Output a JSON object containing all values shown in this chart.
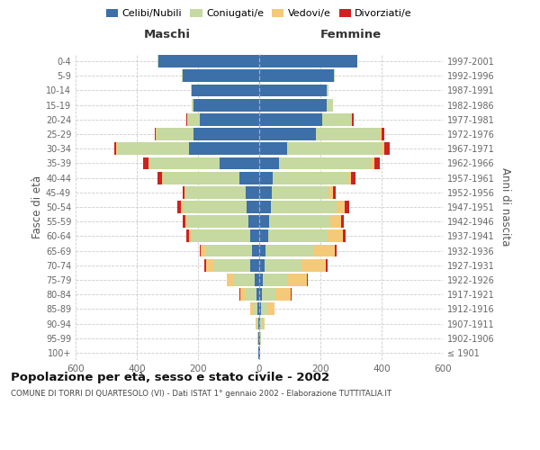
{
  "age_groups": [
    "100+",
    "95-99",
    "90-94",
    "85-89",
    "80-84",
    "75-79",
    "70-74",
    "65-69",
    "60-64",
    "55-59",
    "50-54",
    "45-49",
    "40-44",
    "35-39",
    "30-34",
    "25-29",
    "20-24",
    "15-19",
    "10-14",
    "5-9",
    "0-4"
  ],
  "birth_years": [
    "≤ 1901",
    "1902-1906",
    "1907-1911",
    "1912-1916",
    "1917-1921",
    "1922-1926",
    "1927-1931",
    "1932-1936",
    "1937-1941",
    "1942-1946",
    "1947-1951",
    "1952-1956",
    "1957-1961",
    "1962-1966",
    "1967-1971",
    "1972-1976",
    "1977-1981",
    "1982-1986",
    "1987-1991",
    "1992-1996",
    "1997-2001"
  ],
  "male": {
    "celibi": [
      2,
      2,
      3,
      5,
      8,
      15,
      30,
      25,
      30,
      35,
      40,
      45,
      65,
      130,
      230,
      215,
      195,
      215,
      220,
      250,
      330
    ],
    "coniugati": [
      1,
      2,
      5,
      15,
      40,
      70,
      120,
      150,
      190,
      200,
      210,
      195,
      250,
      230,
      235,
      120,
      40,
      5,
      5,
      2,
      2
    ],
    "vedovi": [
      0,
      1,
      3,
      8,
      15,
      20,
      25,
      15,
      10,
      5,
      5,
      3,
      3,
      3,
      2,
      2,
      1,
      1,
      0,
      0,
      0
    ],
    "divorziati": [
      0,
      0,
      0,
      1,
      2,
      2,
      3,
      5,
      8,
      10,
      12,
      8,
      15,
      15,
      8,
      5,
      3,
      1,
      0,
      0,
      0
    ]
  },
  "female": {
    "nubili": [
      2,
      2,
      3,
      5,
      8,
      12,
      18,
      22,
      28,
      32,
      38,
      40,
      45,
      65,
      90,
      185,
      205,
      220,
      220,
      245,
      320
    ],
    "coniugate": [
      1,
      3,
      8,
      20,
      45,
      80,
      120,
      155,
      195,
      200,
      215,
      185,
      245,
      300,
      310,
      210,
      95,
      20,
      5,
      3,
      2
    ],
    "vedove": [
      0,
      2,
      8,
      25,
      50,
      65,
      80,
      70,
      50,
      35,
      25,
      15,
      10,
      10,
      8,
      5,
      3,
      1,
      0,
      0,
      0
    ],
    "divorziate": [
      0,
      0,
      0,
      1,
      2,
      3,
      5,
      5,
      10,
      10,
      15,
      10,
      15,
      20,
      18,
      10,
      5,
      1,
      0,
      0,
      0
    ]
  },
  "colors": {
    "celibi": "#3d6fa8",
    "coniugati": "#c5d9a0",
    "vedovi": "#f5c97a",
    "divorziati": "#cc2222"
  },
  "xlim": 600,
  "title": "Popolazione per età, sesso e stato civile - 2002",
  "subtitle": "COMUNE DI TORRI DI QUARTESOLO (VI) - Dati ISTAT 1° gennaio 2002 - Elaborazione TUTTITALIA.IT",
  "ylabel_left": "Fasce di età",
  "ylabel_right": "Anni di nascita",
  "xlabel_left": "Maschi",
  "xlabel_right": "Femmine",
  "bg_color": "#ffffff",
  "grid_color": "#cccccc"
}
